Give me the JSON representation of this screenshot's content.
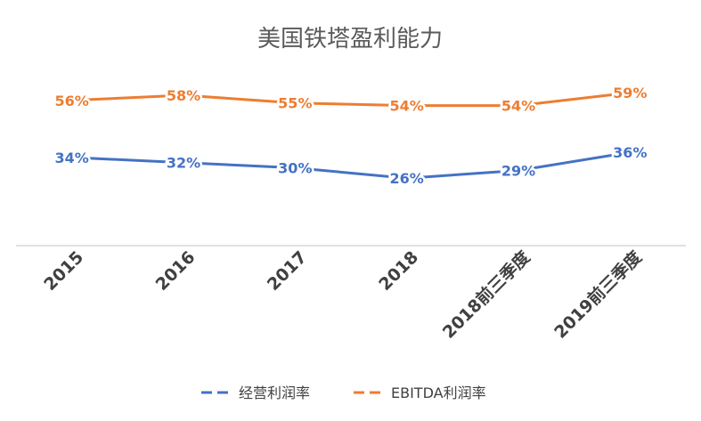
{
  "chart_data": {
    "type": "line",
    "title": "美国铁塔盈利能力",
    "categories": [
      "2015",
      "2016",
      "2017",
      "2018",
      "2018前三季度",
      "2019前三季度"
    ],
    "series": [
      {
        "name": "经营利润率",
        "values": [
          34,
          32,
          30,
          26,
          29,
          36
        ],
        "labels": [
          "34%",
          "32%",
          "30%",
          "26%",
          "29%",
          "36%"
        ],
        "color": "#4472c4"
      },
      {
        "name": "EBITDA利润率",
        "values": [
          56,
          58,
          55,
          54,
          54,
          59
        ],
        "labels": [
          "56%",
          "58%",
          "55%",
          "54%",
          "54%",
          "59%"
        ],
        "color": "#ed7d31"
      }
    ],
    "ylim": [
      0,
      70
    ],
    "grid": false,
    "legend_position": "bottom"
  }
}
